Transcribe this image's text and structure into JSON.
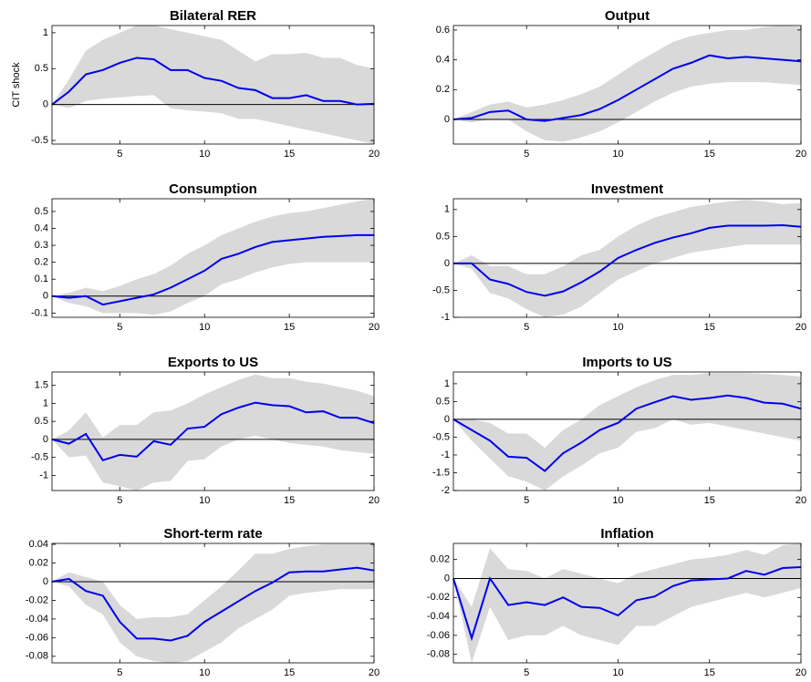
{
  "chart_data": [
    {
      "type": "line",
      "title": "Bilateral RER",
      "ylabel": "CIT shock",
      "x": [
        1,
        2,
        3,
        4,
        5,
        6,
        7,
        8,
        9,
        10,
        11,
        12,
        13,
        14,
        15,
        16,
        17,
        18,
        19,
        20
      ],
      "xlim": [
        1,
        20
      ],
      "xticks": [
        5,
        10,
        15,
        20
      ],
      "ylim": [
        -0.55,
        1.1
      ],
      "yticks": [
        -0.5,
        0,
        0.5,
        1
      ],
      "color": "#0000ee",
      "band_color": "#d9d9d9",
      "values": [
        0,
        0.18,
        0.42,
        0.48,
        0.58,
        0.65,
        0.63,
        0.48,
        0.48,
        0.37,
        0.33,
        0.23,
        0.2,
        0.09,
        0.09,
        0.13,
        0.05,
        0.05,
        0.0,
        0.01
      ],
      "upper": [
        0,
        0.35,
        0.75,
        0.9,
        1.0,
        1.1,
        1.1,
        1.05,
        1.0,
        0.95,
        0.9,
        0.75,
        0.6,
        0.7,
        0.7,
        0.72,
        0.65,
        0.65,
        0.55,
        0.5
      ],
      "lower": [
        0,
        -0.05,
        0.05,
        0.08,
        0.1,
        0.12,
        0.13,
        -0.05,
        -0.08,
        -0.1,
        -0.12,
        -0.2,
        -0.2,
        -0.25,
        -0.3,
        -0.35,
        -0.4,
        -0.45,
        -0.5,
        -0.55
      ]
    },
    {
      "type": "line",
      "title": "Output",
      "x": [
        1,
        2,
        3,
        4,
        5,
        6,
        7,
        8,
        9,
        10,
        11,
        12,
        13,
        14,
        15,
        16,
        17,
        18,
        19,
        20
      ],
      "xlim": [
        1,
        20
      ],
      "xticks": [
        5,
        10,
        15,
        20
      ],
      "ylim": [
        -0.165,
        0.63
      ],
      "yticks": [
        0,
        0.2,
        0.4,
        0.6
      ],
      "color": "#0000ee",
      "band_color": "#d9d9d9",
      "values": [
        0,
        0.01,
        0.05,
        0.06,
        0.0,
        -0.01,
        0.01,
        0.03,
        0.07,
        0.13,
        0.2,
        0.27,
        0.34,
        0.38,
        0.43,
        0.41,
        0.42,
        0.41,
        0.4,
        0.39
      ],
      "upper": [
        0,
        0.05,
        0.1,
        0.12,
        0.08,
        0.1,
        0.13,
        0.17,
        0.22,
        0.3,
        0.38,
        0.45,
        0.52,
        0.56,
        0.58,
        0.6,
        0.6,
        0.62,
        0.63,
        0.62
      ],
      "lower": [
        0,
        -0.02,
        0.0,
        0.0,
        -0.08,
        -0.14,
        -0.15,
        -0.12,
        -0.08,
        -0.02,
        0.05,
        0.12,
        0.18,
        0.22,
        0.24,
        0.25,
        0.25,
        0.25,
        0.24,
        0.23
      ]
    },
    {
      "type": "line",
      "title": "Consumption",
      "x": [
        1,
        2,
        3,
        4,
        5,
        6,
        7,
        8,
        9,
        10,
        11,
        12,
        13,
        14,
        15,
        16,
        17,
        18,
        19,
        20
      ],
      "xlim": [
        1,
        20
      ],
      "xticks": [
        5,
        10,
        15,
        20
      ],
      "ylim": [
        -0.125,
        0.575
      ],
      "yticks": [
        -0.1,
        0,
        0.1,
        0.2,
        0.3,
        0.4,
        0.5
      ],
      "color": "#0000ee",
      "band_color": "#d9d9d9",
      "values": [
        0,
        -0.01,
        0.0,
        -0.05,
        -0.03,
        -0.01,
        0.01,
        0.05,
        0.1,
        0.15,
        0.22,
        0.25,
        0.29,
        0.32,
        0.33,
        0.34,
        0.35,
        0.355,
        0.36,
        0.36
      ],
      "upper": [
        0,
        0.02,
        0.05,
        0.03,
        0.06,
        0.1,
        0.13,
        0.18,
        0.25,
        0.3,
        0.36,
        0.4,
        0.44,
        0.47,
        0.49,
        0.5,
        0.52,
        0.54,
        0.56,
        0.575
      ],
      "lower": [
        0,
        -0.04,
        -0.06,
        -0.1,
        -0.1,
        -0.1,
        -0.11,
        -0.09,
        -0.04,
        0.0,
        0.07,
        0.1,
        0.14,
        0.17,
        0.19,
        0.2,
        0.2,
        0.2,
        0.2,
        0.2
      ]
    },
    {
      "type": "line",
      "title": "Investment",
      "x": [
        1,
        2,
        3,
        4,
        5,
        6,
        7,
        8,
        9,
        10,
        11,
        12,
        13,
        14,
        15,
        16,
        17,
        18,
        19,
        20
      ],
      "xlim": [
        1,
        20
      ],
      "xticks": [
        5,
        10,
        15,
        20
      ],
      "ylim": [
        -1.0,
        1.2
      ],
      "yticks": [
        -1,
        -0.5,
        0,
        0.5,
        1
      ],
      "color": "#0000ee",
      "band_color": "#d9d9d9",
      "values": [
        0,
        0,
        -0.3,
        -0.38,
        -0.53,
        -0.6,
        -0.52,
        -0.35,
        -0.15,
        0.1,
        0.25,
        0.38,
        0.48,
        0.56,
        0.66,
        0.7,
        0.7,
        0.7,
        0.71,
        0.68
      ],
      "upper": [
        0,
        0.15,
        -0.05,
        -0.05,
        -0.2,
        -0.2,
        -0.05,
        0.15,
        0.25,
        0.5,
        0.7,
        0.85,
        0.95,
        1.05,
        1.1,
        1.15,
        1.18,
        1.15,
        1.1,
        1.12
      ],
      "lower": [
        0,
        -0.1,
        -0.55,
        -0.65,
        -0.85,
        -1.0,
        -0.95,
        -0.8,
        -0.55,
        -0.3,
        -0.15,
        0.0,
        0.1,
        0.2,
        0.25,
        0.3,
        0.35,
        0.35,
        0.35,
        0.35
      ]
    },
    {
      "type": "line",
      "title": "Exports to US",
      "x": [
        1,
        2,
        3,
        4,
        5,
        6,
        7,
        8,
        9,
        10,
        11,
        12,
        13,
        14,
        15,
        16,
        17,
        18,
        19,
        20
      ],
      "xlim": [
        1,
        20
      ],
      "xticks": [
        5,
        10,
        15,
        20
      ],
      "ylim": [
        -1.42,
        1.87
      ],
      "yticks": [
        -1,
        -0.5,
        0,
        0.5,
        1,
        1.5
      ],
      "color": "#0000ee",
      "band_color": "#d9d9d9",
      "values": [
        0,
        -0.12,
        0.15,
        -0.58,
        -0.43,
        -0.48,
        -0.05,
        -0.15,
        0.3,
        0.35,
        0.7,
        0.88,
        1.02,
        0.95,
        0.92,
        0.75,
        0.78,
        0.6,
        0.6,
        0.45
      ],
      "upper": [
        0,
        0.25,
        0.75,
        0.05,
        0.4,
        0.4,
        0.75,
        0.8,
        1.0,
        1.25,
        1.45,
        1.65,
        1.8,
        1.7,
        1.7,
        1.6,
        1.55,
        1.45,
        1.35,
        1.2
      ],
      "lower": [
        0,
        -0.5,
        -0.45,
        -1.2,
        -1.3,
        -1.42,
        -1.2,
        -1.15,
        -0.6,
        -0.55,
        -0.2,
        0.0,
        0.1,
        0.0,
        -0.1,
        -0.15,
        -0.2,
        -0.3,
        -0.35,
        -0.4
      ]
    },
    {
      "type": "line",
      "title": "Imports to US",
      "x": [
        1,
        2,
        3,
        4,
        5,
        6,
        7,
        8,
        9,
        10,
        11,
        12,
        13,
        14,
        15,
        16,
        17,
        18,
        19,
        20
      ],
      "xlim": [
        1,
        20
      ],
      "xticks": [
        5,
        10,
        15,
        20
      ],
      "ylim": [
        -2.0,
        1.33
      ],
      "yticks": [
        -2,
        -1.5,
        -1,
        -0.5,
        0,
        0.5,
        1
      ],
      "color": "#0000ee",
      "band_color": "#d9d9d9",
      "values": [
        0,
        -0.3,
        -0.6,
        -1.05,
        -1.08,
        -1.45,
        -0.95,
        -0.65,
        -0.3,
        -0.1,
        0.3,
        0.48,
        0.65,
        0.55,
        0.6,
        0.67,
        0.6,
        0.47,
        0.44,
        0.3
      ],
      "upper": [
        0,
        0.0,
        -0.1,
        -0.4,
        -0.4,
        -0.8,
        -0.3,
        0.0,
        0.4,
        0.65,
        0.9,
        1.1,
        1.25,
        1.25,
        1.3,
        1.3,
        1.3,
        1.28,
        1.25,
        1.2
      ],
      "lower": [
        0,
        -0.6,
        -1.1,
        -1.6,
        -1.75,
        -2.0,
        -1.6,
        -1.3,
        -0.95,
        -0.8,
        -0.35,
        -0.25,
        0.0,
        -0.15,
        -0.1,
        -0.2,
        -0.3,
        -0.4,
        -0.5,
        -0.6
      ]
    },
    {
      "type": "line",
      "title": "Short-term rate",
      "x": [
        1,
        2,
        3,
        4,
        5,
        6,
        7,
        8,
        9,
        10,
        11,
        12,
        13,
        14,
        15,
        16,
        17,
        18,
        19,
        20
      ],
      "xlim": [
        1,
        20
      ],
      "xticks": [
        5,
        10,
        15,
        20
      ],
      "ylim": [
        -0.087,
        0.041
      ],
      "yticks": [
        -0.08,
        -0.06,
        -0.04,
        -0.02,
        0,
        0.02,
        0.04
      ],
      "color": "#0000ee",
      "band_color": "#d9d9d9",
      "values": [
        0,
        0.003,
        -0.01,
        -0.015,
        -0.043,
        -0.061,
        -0.061,
        -0.063,
        -0.058,
        -0.043,
        -0.032,
        -0.021,
        -0.01,
        -0.001,
        0.01,
        0.011,
        0.011,
        0.013,
        0.015,
        0.012
      ],
      "upper": [
        0,
        0.01,
        0.005,
        0.0,
        -0.025,
        -0.04,
        -0.038,
        -0.038,
        -0.035,
        -0.02,
        -0.005,
        0.012,
        0.03,
        0.03,
        0.035,
        0.038,
        0.04,
        0.04,
        0.04,
        0.04
      ],
      "lower": [
        0,
        -0.005,
        -0.025,
        -0.035,
        -0.065,
        -0.08,
        -0.085,
        -0.087,
        -0.085,
        -0.075,
        -0.065,
        -0.05,
        -0.04,
        -0.03,
        -0.015,
        -0.012,
        -0.01,
        -0.008,
        -0.008,
        -0.008
      ]
    },
    {
      "type": "line",
      "title": "Inflation",
      "x": [
        1,
        2,
        3,
        4,
        5,
        6,
        7,
        8,
        9,
        10,
        11,
        12,
        13,
        14,
        15,
        16,
        17,
        18,
        19,
        20
      ],
      "xlim": [
        1,
        20
      ],
      "xticks": [
        5,
        10,
        15,
        20
      ],
      "ylim": [
        -0.089,
        0.037
      ],
      "yticks": [
        -0.08,
        -0.06,
        -0.04,
        -0.02,
        0,
        0.02
      ],
      "color": "#0000ee",
      "band_color": "#d9d9d9",
      "values": [
        0,
        -0.063,
        0,
        -0.028,
        -0.025,
        -0.028,
        -0.02,
        -0.03,
        -0.031,
        -0.039,
        -0.023,
        -0.019,
        -0.008,
        -0.002,
        -0.001,
        0.0,
        0.008,
        0.004,
        0.011,
        0.012
      ],
      "upper": [
        0,
        -0.03,
        0.032,
        0.01,
        0.008,
        0.0,
        0.01,
        0.005,
        0.0,
        -0.005,
        0.005,
        0.01,
        0.015,
        0.02,
        0.022,
        0.025,
        0.03,
        0.025,
        0.035,
        0.037
      ],
      "lower": [
        0,
        -0.089,
        -0.03,
        -0.065,
        -0.06,
        -0.06,
        -0.05,
        -0.06,
        -0.065,
        -0.07,
        -0.05,
        -0.05,
        -0.04,
        -0.03,
        -0.025,
        -0.02,
        -0.015,
        -0.02,
        -0.015,
        -0.01
      ]
    }
  ]
}
